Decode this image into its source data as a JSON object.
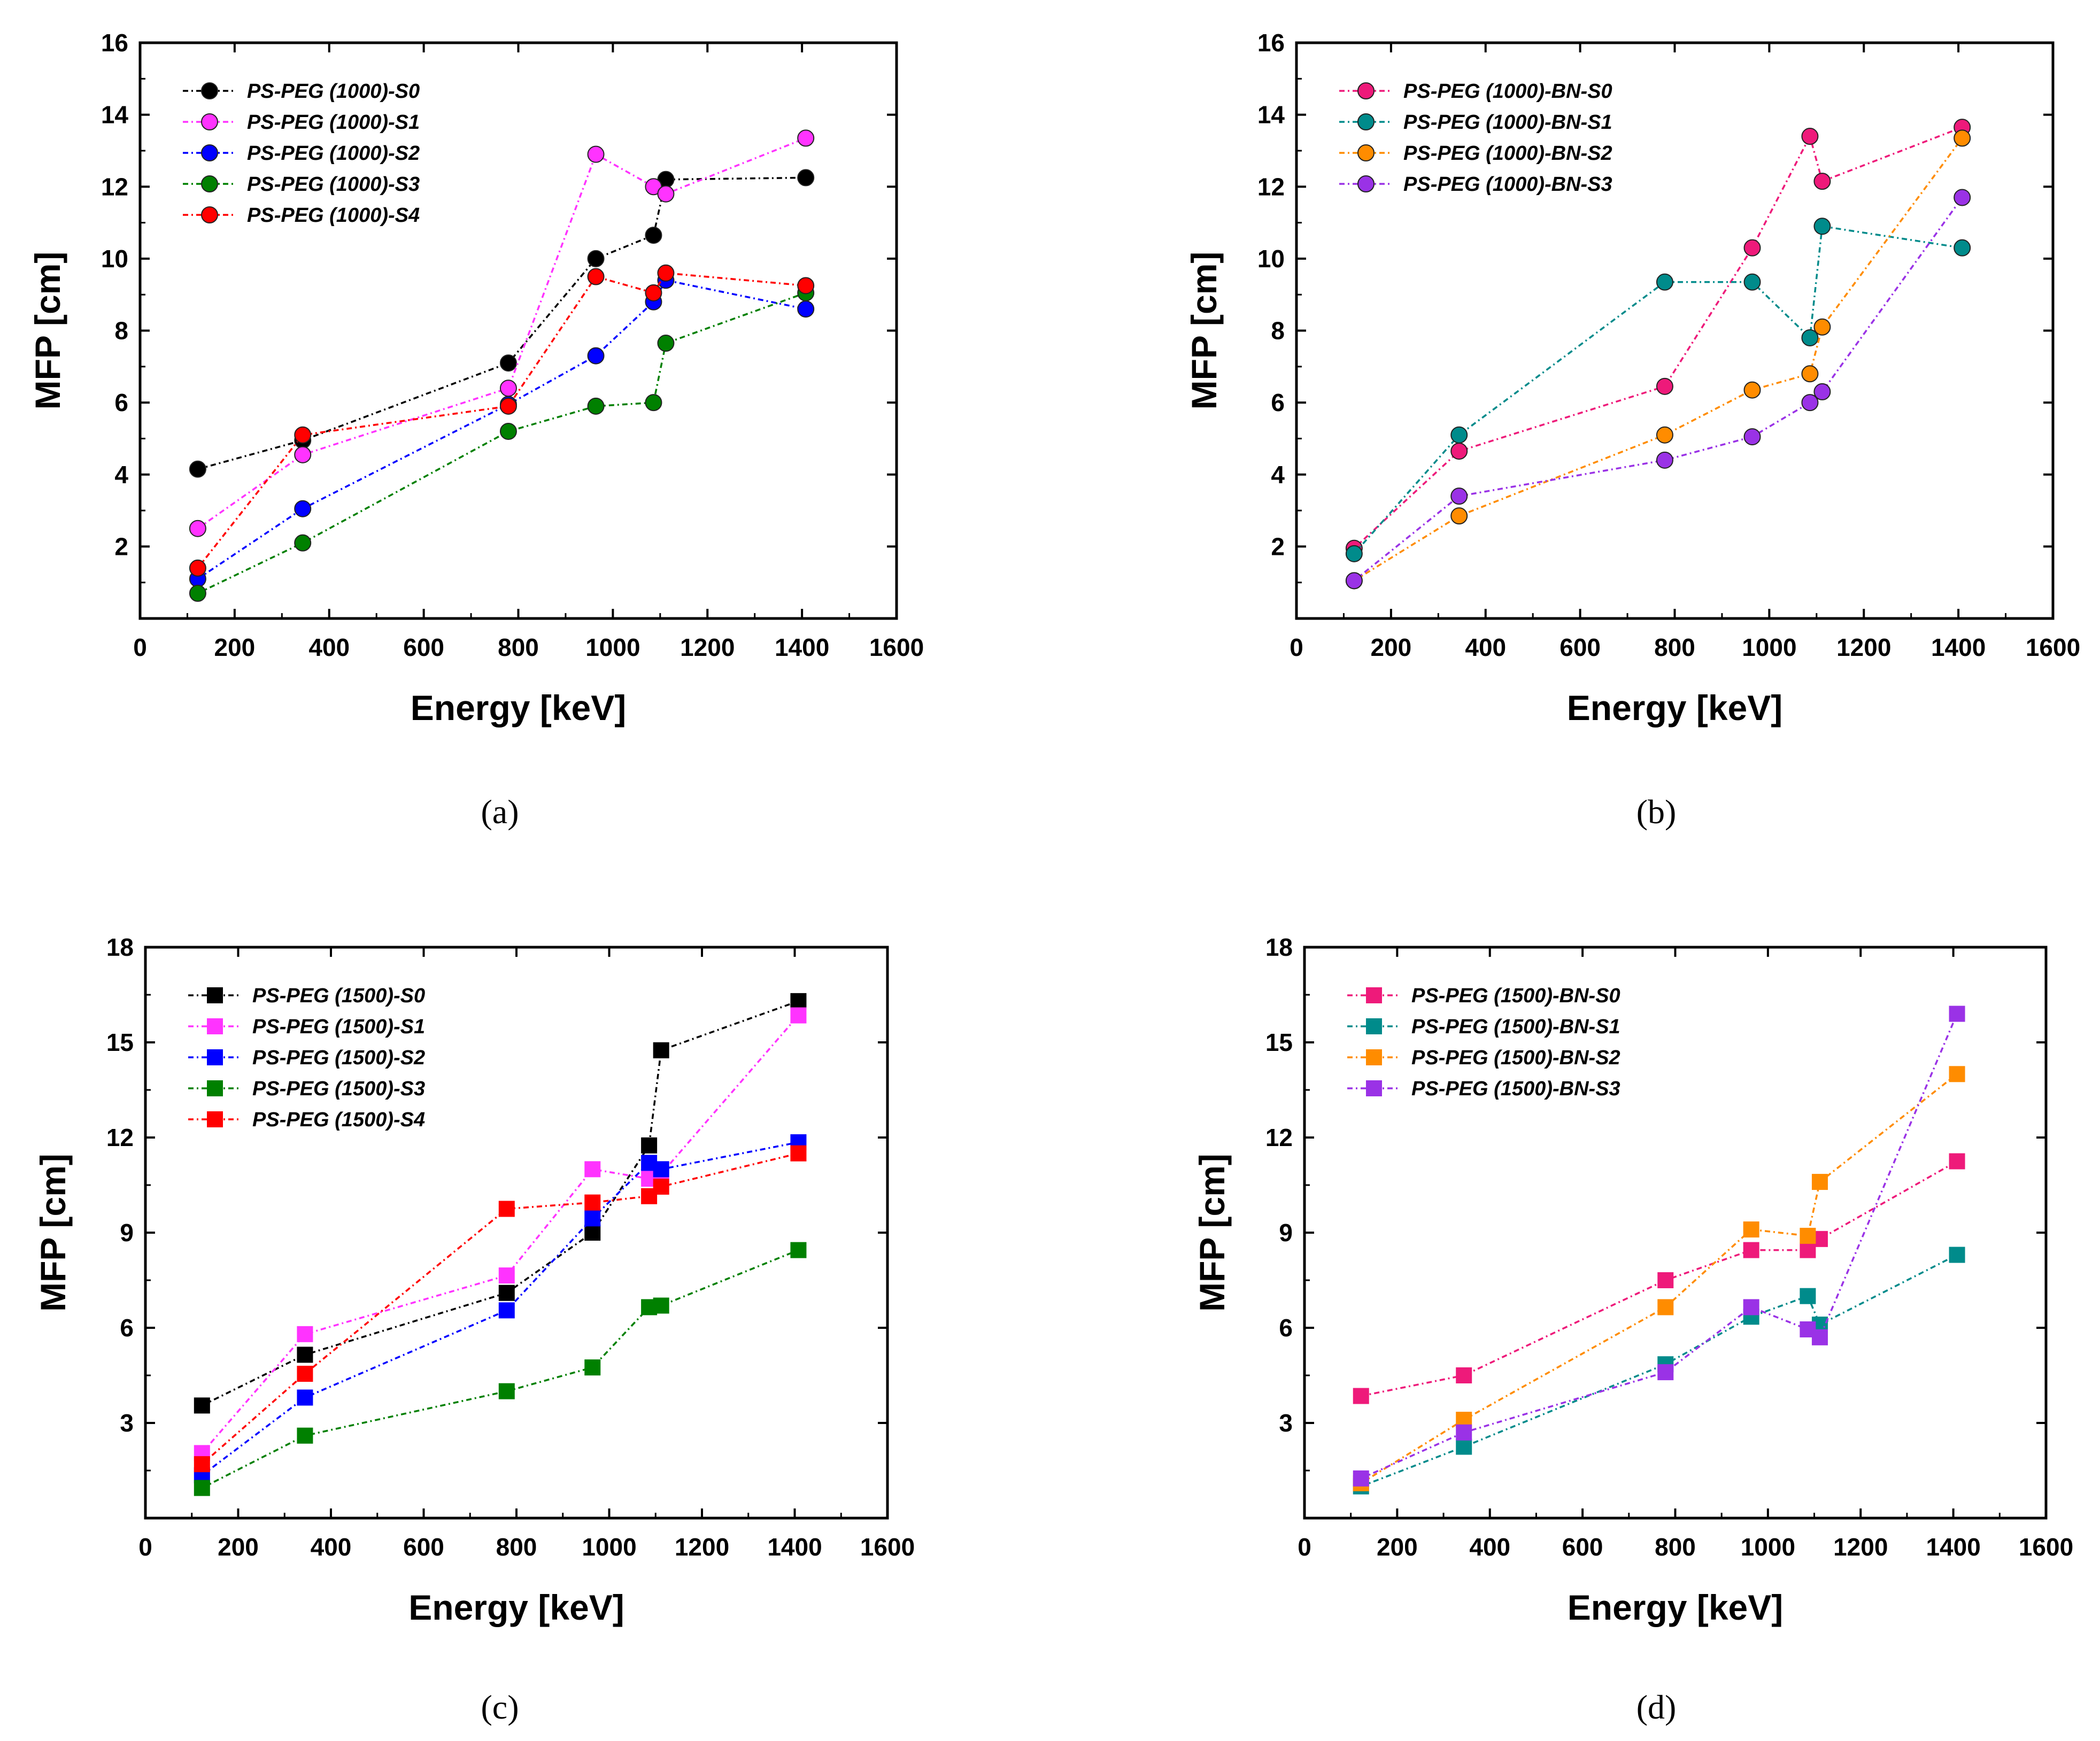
{
  "chart_data": [
    {
      "type": "line",
      "caption": "(a)",
      "xlabel": "Energy [keV]",
      "ylabel": "MFP [cm]",
      "xlim": [
        0,
        1600
      ],
      "ylim": [
        0,
        16
      ],
      "xticks": [
        0,
        200,
        400,
        600,
        800,
        1000,
        1200,
        1400,
        1600
      ],
      "yticks": [
        2,
        4,
        6,
        8,
        10,
        12,
        14,
        16
      ],
      "marker": "circle",
      "legend_position": "top-left",
      "grid": false,
      "series": [
        {
          "name": "PS-PEG (1000)-S0",
          "color": "#000000",
          "x": [
            122,
            344,
            779,
            964,
            1086,
            1112,
            1408
          ],
          "y": [
            4.15,
            4.95,
            7.1,
            10.0,
            10.65,
            12.2,
            12.25
          ]
        },
        {
          "name": "PS-PEG (1000)-S1",
          "color": "#ff33ff",
          "x": [
            122,
            344,
            779,
            964,
            1086,
            1112,
            1408
          ],
          "y": [
            2.5,
            4.55,
            6.4,
            12.9,
            12.0,
            11.8,
            13.35
          ]
        },
        {
          "name": "PS-PEG (1000)-S2",
          "color": "#0000ff",
          "x": [
            122,
            344,
            779,
            964,
            1086,
            1112,
            1408
          ],
          "y": [
            1.1,
            3.05,
            5.95,
            7.3,
            8.8,
            9.4,
            8.6
          ]
        },
        {
          "name": "PS-PEG (1000)-S3",
          "color": "#008000",
          "x": [
            122,
            344,
            779,
            964,
            1086,
            1112,
            1408
          ],
          "y": [
            0.7,
            2.1,
            5.2,
            5.9,
            6.0,
            7.65,
            9.05
          ]
        },
        {
          "name": "PS-PEG (1000)-S4",
          "color": "#ff0000",
          "x": [
            122,
            344,
            779,
            964,
            1086,
            1112,
            1408
          ],
          "y": [
            1.4,
            5.1,
            5.9,
            9.5,
            9.05,
            9.6,
            9.25
          ]
        }
      ]
    },
    {
      "type": "line",
      "caption": "(b)",
      "xlabel": "Energy [keV]",
      "ylabel": "MFP [cm]",
      "xlim": [
        0,
        1600
      ],
      "ylim": [
        0,
        16
      ],
      "xticks": [
        0,
        200,
        400,
        600,
        800,
        1000,
        1200,
        1400,
        1600
      ],
      "yticks": [
        2,
        4,
        6,
        8,
        10,
        12,
        14,
        16
      ],
      "marker": "circle",
      "legend_position": "top-left",
      "grid": false,
      "series": [
        {
          "name": "PS-PEG (1000)-BN-S0",
          "color": "#ee1a7a",
          "x": [
            122,
            344,
            779,
            964,
            1086,
            1112,
            1408
          ],
          "y": [
            1.95,
            4.65,
            6.45,
            10.3,
            13.4,
            12.15,
            13.65
          ]
        },
        {
          "name": "PS-PEG (1000)-BN-S1",
          "color": "#008b8b",
          "x": [
            122,
            344,
            779,
            964,
            1086,
            1112,
            1408
          ],
          "y": [
            1.8,
            5.1,
            9.35,
            9.35,
            7.8,
            10.9,
            10.3
          ]
        },
        {
          "name": "PS-PEG (1000)-BN-S2",
          "color": "#ff8c00",
          "x": [
            122,
            344,
            779,
            964,
            1086,
            1112,
            1408
          ],
          "y": [
            1.05,
            2.85,
            5.1,
            6.35,
            6.8,
            8.1,
            13.35
          ]
        },
        {
          "name": "PS-PEG (1000)-BN-S3",
          "color": "#9a32e6",
          "x": [
            122,
            344,
            779,
            964,
            1086,
            1112,
            1408
          ],
          "y": [
            1.05,
            3.4,
            4.4,
            5.05,
            6.0,
            6.3,
            11.7
          ]
        }
      ]
    },
    {
      "type": "line",
      "caption": "(c)",
      "xlabel": "Energy [keV]",
      "ylabel": "MFP [cm]",
      "xlim": [
        0,
        1600
      ],
      "ylim": [
        0,
        18
      ],
      "xticks": [
        0,
        200,
        400,
        600,
        800,
        1000,
        1200,
        1400,
        1600
      ],
      "yticks": [
        3,
        6,
        9,
        12,
        15,
        18
      ],
      "marker": "square",
      "legend_position": "top-left",
      "grid": false,
      "series": [
        {
          "name": "PS-PEG (1500)-S0",
          "color": "#000000",
          "x": [
            122,
            344,
            779,
            964,
            1086,
            1112,
            1408
          ],
          "y": [
            3.55,
            5.15,
            7.1,
            9.0,
            11.75,
            14.75,
            16.3
          ]
        },
        {
          "name": "PS-PEG (1500)-S1",
          "color": "#ff33ff",
          "x": [
            122,
            344,
            779,
            964,
            1086,
            1112,
            1408
          ],
          "y": [
            2.05,
            5.8,
            7.65,
            11.0,
            10.7,
            10.85,
            15.85
          ]
        },
        {
          "name": "PS-PEG (1500)-S2",
          "color": "#0000ff",
          "x": [
            122,
            344,
            779,
            964,
            1086,
            1112,
            1408
          ],
          "y": [
            1.35,
            3.8,
            6.55,
            9.45,
            11.2,
            11.0,
            11.85
          ]
        },
        {
          "name": "PS-PEG (1500)-S3",
          "color": "#008000",
          "x": [
            122,
            344,
            779,
            964,
            1086,
            1112,
            1408
          ],
          "y": [
            0.95,
            2.6,
            4.0,
            4.75,
            6.65,
            6.7,
            8.45
          ]
        },
        {
          "name": "PS-PEG (1500)-S4",
          "color": "#ff0000",
          "x": [
            122,
            344,
            779,
            964,
            1086,
            1112,
            1408
          ],
          "y": [
            1.7,
            4.55,
            9.75,
            9.95,
            10.15,
            10.45,
            11.5
          ]
        }
      ]
    },
    {
      "type": "line",
      "caption": "(d)",
      "xlabel": "Energy [keV]",
      "ylabel": "MFP [cm]",
      "xlim": [
        0,
        1600
      ],
      "ylim": [
        0,
        18
      ],
      "xticks": [
        0,
        200,
        400,
        600,
        800,
        1000,
        1200,
        1400,
        1600
      ],
      "yticks": [
        3,
        6,
        9,
        12,
        15,
        18
      ],
      "marker": "square",
      "legend_position": "top-left",
      "grid": false,
      "series": [
        {
          "name": "PS-PEG (1500)-BN-S0",
          "color": "#ee1a7a",
          "x": [
            122,
            344,
            779,
            964,
            1086,
            1112,
            1408
          ],
          "y": [
            3.85,
            4.5,
            7.5,
            8.45,
            8.45,
            8.8,
            11.25
          ]
        },
        {
          "name": "PS-PEG (1500)-BN-S1",
          "color": "#008b8b",
          "x": [
            122,
            344,
            779,
            964,
            1086,
            1112,
            1408
          ],
          "y": [
            1.0,
            2.25,
            4.85,
            6.35,
            7.0,
            6.1,
            8.3
          ]
        },
        {
          "name": "PS-PEG (1500)-BN-S2",
          "color": "#ff8c00",
          "x": [
            122,
            344,
            779,
            964,
            1086,
            1112,
            1408
          ],
          "y": [
            1.1,
            3.1,
            6.65,
            9.1,
            8.9,
            10.6,
            14.0
          ]
        },
        {
          "name": "PS-PEG (1500)-BN-S3",
          "color": "#9a32e6",
          "x": [
            122,
            344,
            779,
            964,
            1086,
            1112,
            1408
          ],
          "y": [
            1.25,
            2.7,
            4.6,
            6.65,
            5.95,
            5.7,
            15.9
          ]
        }
      ]
    }
  ]
}
